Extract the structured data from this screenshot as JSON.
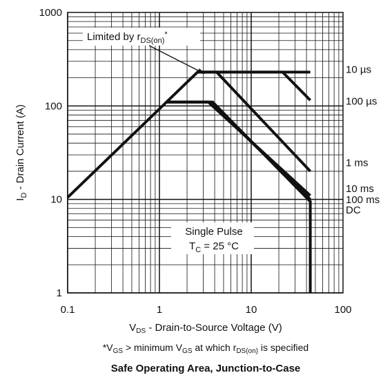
{
  "chart_data": {
    "type": "line",
    "title": "Safe Operating Area, Junction-to-Case",
    "xlabel": {
      "main": "V",
      "sub": "DS",
      "rest": " - Drain-to-Source Voltage (V)"
    },
    "ylabel": {
      "main": "I",
      "sub": "D",
      "rest": " - Drain Current (A)"
    },
    "footnote": {
      "star": "*V",
      "sub1": "GS",
      "mid": " > minimum V",
      "sub2": "GS",
      "mid2": " at which r",
      "sub3": "DS(on)",
      "end": " is specified"
    },
    "x_scale": "log",
    "y_scale": "log",
    "xlim": [
      0.1,
      100
    ],
    "ylim": [
      1,
      1000
    ],
    "x_ticks": [
      "0.1",
      "1",
      "10",
      "100"
    ],
    "y_ticks": [
      "1",
      "10",
      "100",
      "1000"
    ],
    "grid": true,
    "annotations": {
      "limited": {
        "main": "Limited by r",
        "sub": "DS(on)",
        "end": "*"
      },
      "single_pulse": "Single Pulse",
      "tc": {
        "main": "T",
        "sub": "C",
        "end": " = 25 °C"
      }
    },
    "series": [
      {
        "name": "10 µs",
        "points": [
          [
            0.1,
            10.5
          ],
          [
            2.6,
            230
          ],
          [
            44,
            230
          ]
        ]
      },
      {
        "name": "100 µs",
        "points": [
          [
            2.6,
            230
          ],
          [
            22,
            230
          ],
          [
            44,
            115
          ]
        ]
      },
      {
        "name": "1 ms",
        "points": [
          [
            2.6,
            230
          ],
          [
            4.2,
            230
          ],
          [
            44,
            20
          ]
        ]
      },
      {
        "name": "10 ms",
        "points": [
          [
            1.2,
            110
          ],
          [
            3.4,
            110
          ],
          [
            44,
            11
          ]
        ]
      },
      {
        "name": "100 ms",
        "points": [
          [
            1.2,
            110
          ],
          [
            3.6,
            110
          ],
          [
            44,
            10
          ]
        ]
      },
      {
        "name": "DC",
        "points": [
          [
            1.2,
            110
          ],
          [
            3.8,
            110
          ],
          [
            44,
            9.5
          ],
          [
            44,
            1
          ]
        ]
      }
    ]
  }
}
